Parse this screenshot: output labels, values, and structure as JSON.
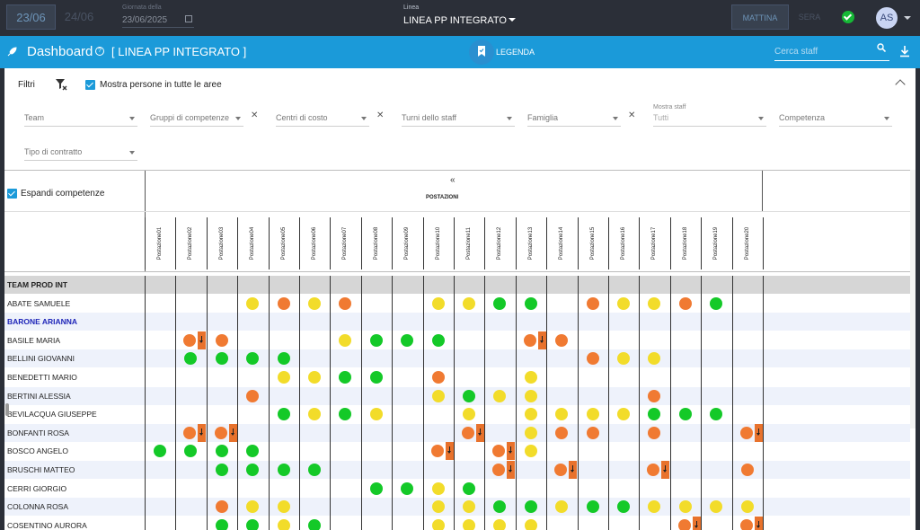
{
  "topbar": {
    "date_active": "23/06",
    "date_next": "24/06",
    "gd_label": "Giornata della",
    "gd_value": "23/06/2025",
    "linea_label": "Linea",
    "linea_value": "LINEA PP INTEGRATO",
    "shift_active": "MATTINA",
    "shift_other": "SERA",
    "avatar": "AS"
  },
  "dashboard": {
    "title": "Dashboard",
    "linea": "[ LINEA PP INTEGRATO ]",
    "legend_label": "LEGENDA",
    "search_placeholder": "Cerca staff"
  },
  "filters": {
    "title": "Filtri",
    "show_all_label": "Mostra persone in tutte le aree",
    "fields": [
      {
        "key": "team",
        "label": "Team"
      },
      {
        "key": "gruppi",
        "label": "Gruppi di competenze"
      },
      {
        "key": "centri",
        "label": "Centri di costo"
      },
      {
        "key": "turni",
        "label": "Turni dello staff"
      },
      {
        "key": "famiglia",
        "label": "Famiglia"
      },
      {
        "key": "mostra_staff_small",
        "label": "Mostra staff"
      },
      {
        "key": "mostra_staff",
        "label": "Tutti"
      },
      {
        "key": "competenza",
        "label": "Competenza"
      },
      {
        "key": "contratto",
        "label": "Tipo di contratto"
      }
    ]
  },
  "grid": {
    "expand_label": "Espandi competenze",
    "collapse_glyph": "«",
    "postazioni_title": "POSTAZIONI",
    "columns": [
      "Postazione01",
      "Postazione02",
      "Postazione03",
      "Postazione04",
      "Postazione05",
      "Postazione06",
      "Postazione07",
      "Postazione08",
      "Postazione09",
      "Postazione10",
      "Postazione11",
      "Postazione12",
      "Postazione13",
      "Postazione14",
      "Postazione15",
      "Postazione16",
      "Postazione17",
      "Postazione18",
      "Postazione19",
      "Postazione20"
    ],
    "colors": {
      "green": "#14c928",
      "yellow": "#f2dc2a",
      "orange": "#f07a32"
    },
    "rows": [
      {
        "name": "TEAM PROD INT",
        "type": "team",
        "cells": []
      },
      {
        "name": "ABATE SAMUELE",
        "cells": [
          [
            4,
            "y"
          ],
          [
            5,
            "o"
          ],
          [
            6,
            "y"
          ],
          [
            7,
            "o"
          ],
          [
            10,
            "y"
          ],
          [
            11,
            "y"
          ],
          [
            12,
            "g"
          ],
          [
            13,
            "g"
          ],
          [
            15,
            "o"
          ],
          [
            16,
            "y"
          ],
          [
            17,
            "y"
          ],
          [
            18,
            "o"
          ],
          [
            19,
            "g"
          ]
        ]
      },
      {
        "name": "BARONE ARIANNA",
        "type": "highlight",
        "cells": []
      },
      {
        "name": "BASILE MARIA",
        "cells": [
          [
            2,
            "o",
            1
          ],
          [
            3,
            "o"
          ],
          [
            7,
            "y"
          ],
          [
            8,
            "g"
          ],
          [
            9,
            "g"
          ],
          [
            10,
            "g"
          ],
          [
            13,
            "o",
            1
          ],
          [
            14,
            "o"
          ]
        ]
      },
      {
        "name": "BELLINI GIOVANNI",
        "cells": [
          [
            2,
            "g"
          ],
          [
            3,
            "g"
          ],
          [
            4,
            "g"
          ],
          [
            5,
            "g"
          ],
          [
            15,
            "o"
          ],
          [
            16,
            "y"
          ],
          [
            17,
            "y"
          ]
        ]
      },
      {
        "name": "BENEDETTI MARIO",
        "cells": [
          [
            5,
            "y"
          ],
          [
            6,
            "y"
          ],
          [
            7,
            "g"
          ],
          [
            8,
            "g"
          ],
          [
            10,
            "o"
          ],
          [
            13,
            "y"
          ]
        ]
      },
      {
        "name": "BERTINI ALESSIA",
        "cells": [
          [
            4,
            "o"
          ],
          [
            10,
            "y"
          ],
          [
            11,
            "g"
          ],
          [
            12,
            "y"
          ],
          [
            13,
            "y"
          ],
          [
            17,
            "o"
          ]
        ]
      },
      {
        "name": "BEVILACQUA GIUSEPPE",
        "cells": [
          [
            5,
            "g"
          ],
          [
            6,
            "y"
          ],
          [
            7,
            "g"
          ],
          [
            8,
            "y"
          ],
          [
            11,
            "y"
          ],
          [
            13,
            "y"
          ],
          [
            14,
            "y"
          ],
          [
            15,
            "y"
          ],
          [
            16,
            "y"
          ],
          [
            17,
            "g"
          ],
          [
            18,
            "g"
          ],
          [
            19,
            "g"
          ]
        ]
      },
      {
        "name": "BONFANTI ROSA",
        "cells": [
          [
            2,
            "o",
            1
          ],
          [
            3,
            "o",
            1
          ],
          [
            11,
            "o",
            1
          ],
          [
            13,
            "y"
          ],
          [
            14,
            "o"
          ],
          [
            15,
            "o"
          ],
          [
            17,
            "o"
          ],
          [
            20,
            "o",
            1
          ]
        ]
      },
      {
        "name": "BOSCO ANGELO",
        "cells": [
          [
            1,
            "g"
          ],
          [
            2,
            "g"
          ],
          [
            3,
            "g"
          ],
          [
            4,
            "g"
          ],
          [
            10,
            "o",
            1
          ],
          [
            12,
            "o",
            1
          ],
          [
            13,
            "y"
          ]
        ]
      },
      {
        "name": "BRUSCHI MATTEO",
        "cells": [
          [
            3,
            "g"
          ],
          [
            4,
            "g"
          ],
          [
            5,
            "g"
          ],
          [
            6,
            "g"
          ],
          [
            12,
            "o",
            1
          ],
          [
            14,
            "o",
            1
          ],
          [
            17,
            "o",
            1
          ],
          [
            20,
            "o"
          ]
        ]
      },
      {
        "name": "CERRI GIORGIO",
        "cells": [
          [
            8,
            "g"
          ],
          [
            9,
            "g"
          ],
          [
            10,
            "y"
          ],
          [
            11,
            "g"
          ]
        ]
      },
      {
        "name": "COLONNA ROSA",
        "cells": [
          [
            3,
            "o"
          ],
          [
            4,
            "y"
          ],
          [
            5,
            "y"
          ],
          [
            10,
            "y"
          ],
          [
            11,
            "y"
          ],
          [
            12,
            "g"
          ],
          [
            13,
            "g"
          ],
          [
            14,
            "y"
          ],
          [
            15,
            "g"
          ],
          [
            16,
            "g"
          ],
          [
            17,
            "y"
          ],
          [
            18,
            "y"
          ],
          [
            19,
            "y"
          ],
          [
            20,
            "y"
          ]
        ]
      },
      {
        "name": "COSENTINO AURORA",
        "cells": [
          [
            3,
            "g"
          ],
          [
            4,
            "g"
          ],
          [
            5,
            "y"
          ],
          [
            6,
            "g"
          ],
          [
            10,
            "y"
          ],
          [
            11,
            "y"
          ],
          [
            12,
            "y"
          ],
          [
            13,
            "y"
          ],
          [
            18,
            "o",
            1
          ],
          [
            20,
            "o",
            1
          ]
        ]
      }
    ]
  }
}
